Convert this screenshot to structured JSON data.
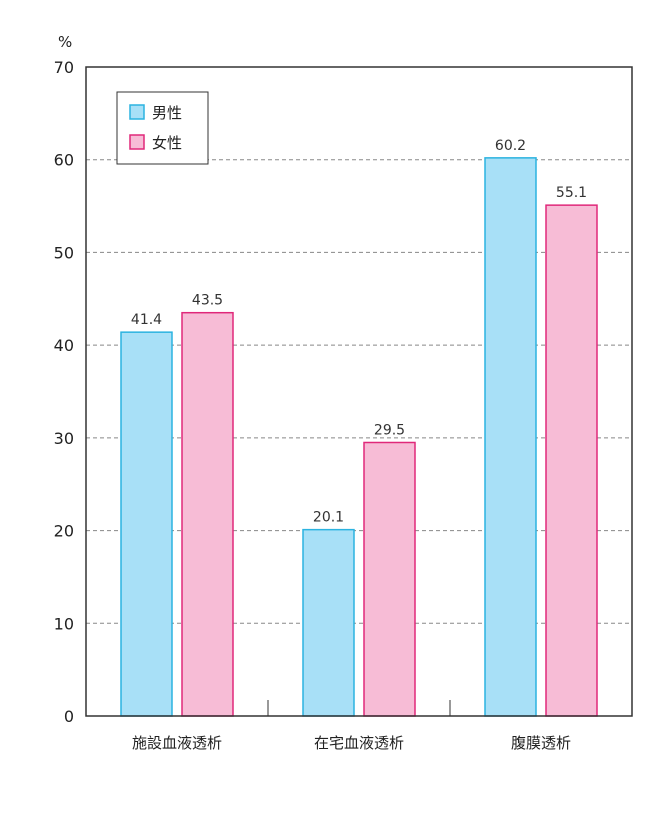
{
  "chart_data": {
    "type": "bar",
    "y_unit": "%",
    "categories": [
      "施設血液透析",
      "在宅血液透析",
      "腹膜透析"
    ],
    "series": [
      {
        "name": "男性",
        "values": [
          41.4,
          20.1,
          60.2
        ],
        "color": "#a8e0f7",
        "stroke": "#2bb3e0"
      },
      {
        "name": "女性",
        "values": [
          43.5,
          29.5,
          55.1
        ],
        "color": "#f7bcd6",
        "stroke": "#e0287a"
      }
    ],
    "data_labels": [
      [
        "41.4",
        "20.1",
        "60.2"
      ],
      [
        "43.5",
        "29.5",
        "55.1"
      ]
    ],
    "ylim": [
      0,
      70
    ],
    "yticks": [
      0,
      10,
      20,
      30,
      40,
      50,
      60,
      70
    ],
    "grid": true,
    "legend": "top-left"
  }
}
